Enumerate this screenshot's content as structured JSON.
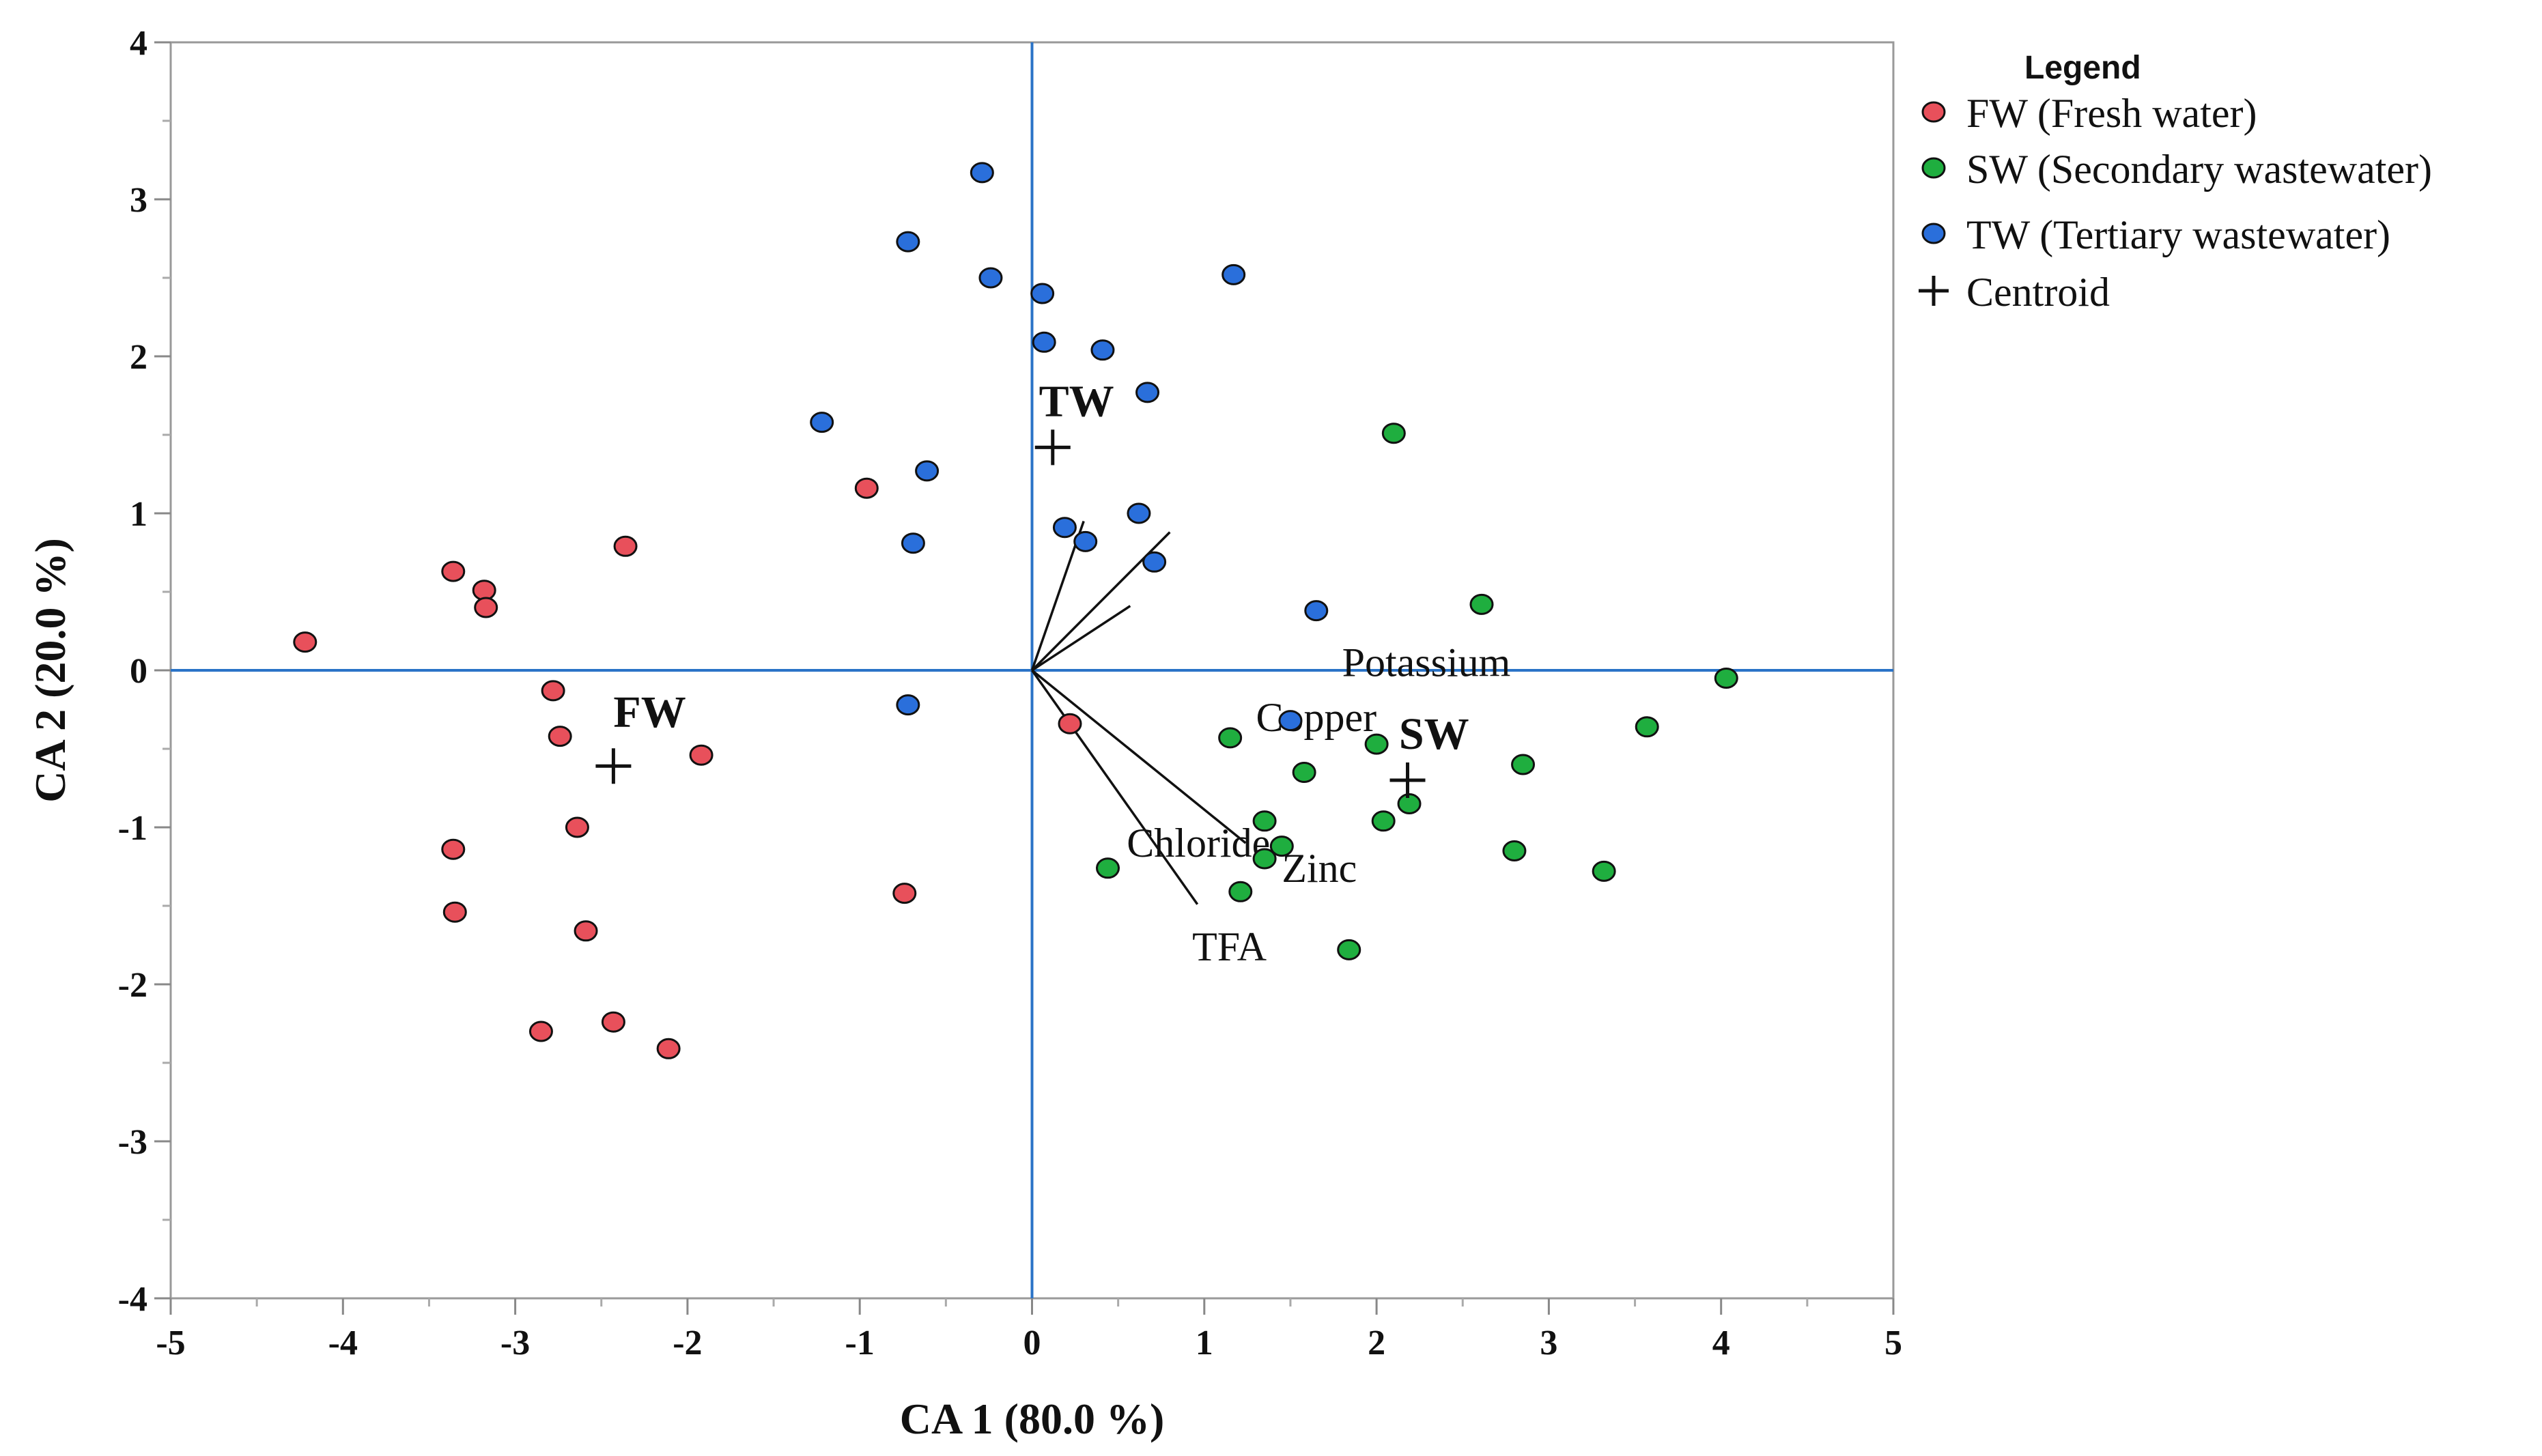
{
  "chart_data": {
    "type": "scatter",
    "xlabel": "CA 1  (80.0 %)",
    "ylabel": "CA 2  (20.0 %)",
    "xlim": [
      -5,
      5
    ],
    "ylim": [
      -4,
      4
    ],
    "xticks": [
      -5,
      -4,
      -3,
      -2,
      -1,
      0,
      1,
      2,
      3,
      4,
      5
    ],
    "yticks": [
      -4,
      -3,
      -2,
      -1,
      0,
      1,
      2,
      3,
      4
    ],
    "grid": false,
    "legend": {
      "title": "Legend",
      "position": "right",
      "entries": [
        {
          "label": "FW (Fresh water)",
          "marker": "circle",
          "color": "#e8505b"
        },
        {
          "label": "SW (Secondary wastewater)",
          "marker": "circle",
          "color": "#1fae3f"
        },
        {
          "label": "TW (Tertiary wastewater)",
          "marker": "circle",
          "color": "#2a6fdb"
        },
        {
          "label": "Centroid",
          "marker": "plus",
          "color": "#111111"
        }
      ]
    },
    "series": [
      {
        "name": "FW (Fresh water)",
        "color": "#e8505b",
        "points": [
          [
            -4.22,
            0.18
          ],
          [
            -3.36,
            0.63
          ],
          [
            -3.18,
            0.51
          ],
          [
            -3.17,
            0.4
          ],
          [
            -2.36,
            0.79
          ],
          [
            -0.96,
            1.16
          ],
          [
            -2.78,
            -0.13
          ],
          [
            -2.74,
            -0.42
          ],
          [
            -1.92,
            -0.54
          ],
          [
            -3.36,
            -1.14
          ],
          [
            -2.64,
            -1.0
          ],
          [
            -3.35,
            -1.54
          ],
          [
            -2.59,
            -1.66
          ],
          [
            -2.85,
            -2.3
          ],
          [
            -2.43,
            -2.24
          ],
          [
            -2.11,
            -2.41
          ],
          [
            -0.74,
            -1.42
          ],
          [
            0.22,
            -0.34
          ]
        ]
      },
      {
        "name": "SW (Secondary wastewater)",
        "color": "#1fae3f",
        "points": [
          [
            2.1,
            1.51
          ],
          [
            2.61,
            0.42
          ],
          [
            4.03,
            -0.05
          ],
          [
            3.57,
            -0.36
          ],
          [
            2.0,
            -0.47
          ],
          [
            2.85,
            -0.6
          ],
          [
            1.15,
            -0.43
          ],
          [
            1.58,
            -0.65
          ],
          [
            1.35,
            -0.96
          ],
          [
            1.45,
            -1.12
          ],
          [
            1.35,
            -1.2
          ],
          [
            1.21,
            -1.41
          ],
          [
            2.19,
            -0.85
          ],
          [
            2.04,
            -0.96
          ],
          [
            2.8,
            -1.15
          ],
          [
            3.32,
            -1.28
          ],
          [
            0.44,
            -1.26
          ],
          [
            1.84,
            -1.78
          ]
        ]
      },
      {
        "name": "TW (Tertiary wastewater)",
        "color": "#2a6fdb",
        "points": [
          [
            -0.29,
            3.17
          ],
          [
            -0.72,
            2.73
          ],
          [
            -0.24,
            2.5
          ],
          [
            0.06,
            2.4
          ],
          [
            0.07,
            2.09
          ],
          [
            0.41,
            2.04
          ],
          [
            1.17,
            2.52
          ],
          [
            0.67,
            1.77
          ],
          [
            -1.22,
            1.58
          ],
          [
            -0.61,
            1.27
          ],
          [
            -0.69,
            0.81
          ],
          [
            0.19,
            0.91
          ],
          [
            0.31,
            0.82
          ],
          [
            0.62,
            1.0
          ],
          [
            0.71,
            0.69
          ],
          [
            1.65,
            0.38
          ],
          [
            -0.72,
            -0.22
          ],
          [
            1.5,
            -0.32
          ]
        ]
      }
    ],
    "centroids": [
      {
        "label": "FW",
        "x": -2.43,
        "y": -0.61
      },
      {
        "label": "SW",
        "x": 2.18,
        "y": -0.7
      },
      {
        "label": "TW",
        "x": 0.12,
        "y": 1.42
      }
    ],
    "biplot_vectors": [
      {
        "label": "Chloride",
        "x": 0.3,
        "y": 0.95
      },
      {
        "label": "Potassium",
        "x": 0.8,
        "y": 0.88
      },
      {
        "label": "Copper",
        "x": 0.57,
        "y": 0.41
      },
      {
        "label": "Zinc",
        "x": 1.24,
        "y": -1.1
      },
      {
        "label": "TFA",
        "x": 0.96,
        "y": -1.49
      }
    ]
  }
}
